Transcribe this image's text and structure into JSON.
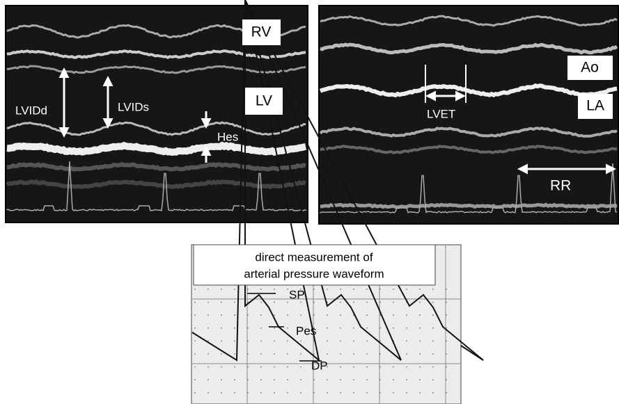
{
  "left_panel": {
    "labels": {
      "rv": "RV",
      "lv": "LV",
      "lvidd": "LVIDd",
      "lvids": "LVIDs",
      "hes": "Hes"
    }
  },
  "right_panel": {
    "labels": {
      "ao": "Ao",
      "la": "LA",
      "lvet": "LVET",
      "rr": "RR"
    }
  },
  "bottom_panel": {
    "title": [
      "direct measurement of",
      "arterial pressure waveform"
    ],
    "labels": {
      "sp": "SP",
      "pes": "Pes",
      "dp": "DP"
    }
  }
}
